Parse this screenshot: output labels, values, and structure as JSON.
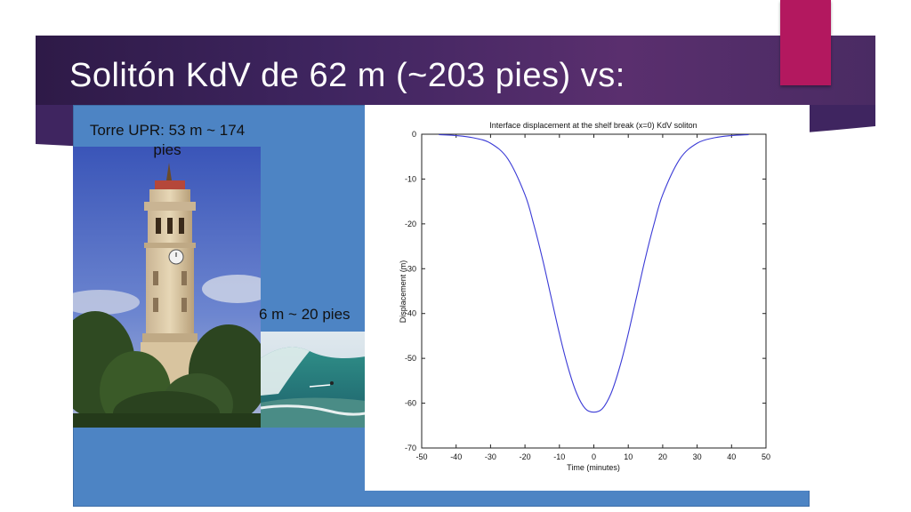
{
  "slide": {
    "title": "Solitón KdV de 62 m (~203 pies) vs:",
    "colors": {
      "banner": "#3f2560",
      "accent": "#b3185f",
      "content_bg": "#4d84c4",
      "curve": "#3b3bd6"
    }
  },
  "photos": {
    "tower": {
      "label": "Torre UPR: 53 m ~ 174 pies",
      "icon": "clock-tower-photo"
    },
    "wave": {
      "label": "6 m ~ 20 pies",
      "icon": "surf-wave-photo"
    }
  },
  "chart_data": {
    "type": "line",
    "title": "Interface displacement at the shelf break (x=0) KdV soliton",
    "xlabel": "Time (minutes)",
    "ylabel": "Displacement (m)",
    "xlim": [
      -50,
      50
    ],
    "ylim": [
      -70,
      0
    ],
    "x_ticks": [
      -50,
      -40,
      -30,
      -20,
      -10,
      0,
      10,
      20,
      30,
      40,
      50
    ],
    "y_ticks": [
      0,
      -10,
      -20,
      -30,
      -40,
      -50,
      -60,
      -70
    ],
    "grid": false,
    "series": [
      {
        "x": [
          -45,
          -40,
          -35,
          -30,
          -25,
          -20,
          -17.5,
          -15,
          -12.5,
          -10,
          -7.5,
          -5,
          -2.5,
          0,
          2.5,
          5,
          7.5,
          10,
          12.5,
          15,
          17.5,
          20,
          25,
          30,
          35,
          40,
          45
        ],
        "values": [
          -0.1,
          -0.3,
          -0.8,
          -2.0,
          -5.5,
          -13.5,
          -20,
          -27.5,
          -36,
          -44.5,
          -52,
          -57.8,
          -61.2,
          -62,
          -61.2,
          -57.8,
          -52,
          -44.5,
          -36,
          -27.5,
          -20,
          -13.5,
          -5.5,
          -2.0,
          -0.8,
          -0.3,
          -0.1
        ]
      }
    ]
  }
}
